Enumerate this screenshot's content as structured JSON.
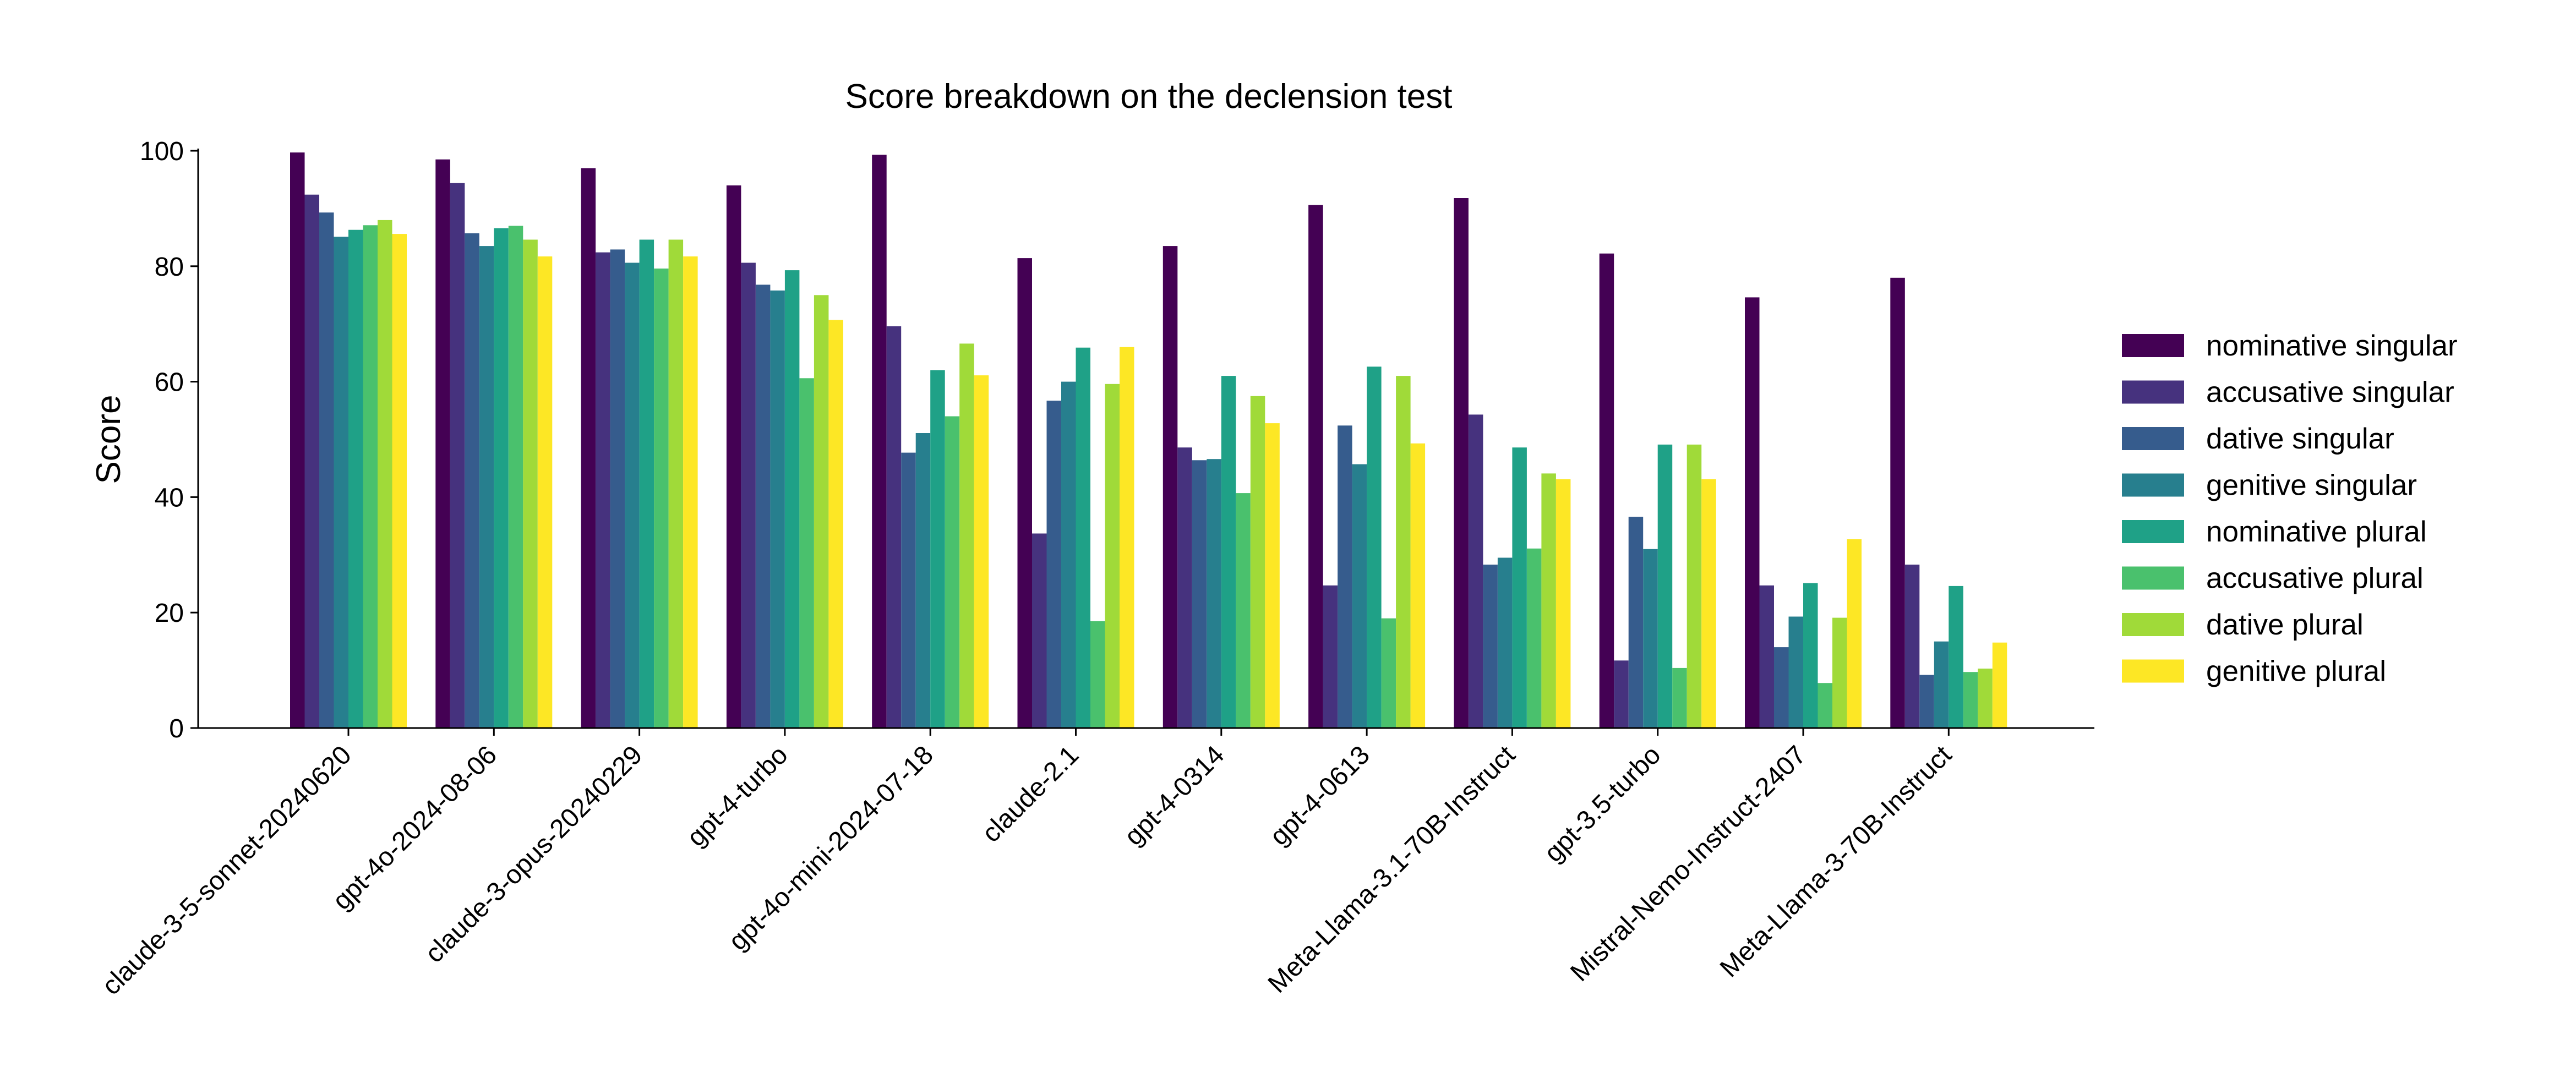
{
  "chart_data": {
    "type": "bar",
    "title": "Score breakdown on the declension test",
    "xlabel": "",
    "ylabel": "Score",
    "ylim": [
      0,
      104
    ],
    "yticks": [
      0,
      20,
      40,
      60,
      80,
      100
    ],
    "grid": false,
    "legend_position": "right",
    "categories": [
      "claude-3-5-sonnet-20240620",
      "gpt-4o-2024-08-06",
      "claude-3-opus-20240229",
      "gpt-4-turbo",
      "gpt-4o-mini-2024-07-18",
      "claude-2.1",
      "gpt-4-0314",
      "gpt-4-0613",
      "Meta-Llama-3.1-70B-Instruct",
      "gpt-3.5-turbo",
      "Mistral-Nemo-Instruct-2407",
      "Meta-Llama-3-70B-Instruct"
    ],
    "series": [
      {
        "name": "nominative singular",
        "color": "#440154",
        "values": [
          99.7,
          98.5,
          97.0,
          94.0,
          99.3,
          81.4,
          83.5,
          90.6,
          91.8,
          82.2,
          74.6,
          78.0
        ]
      },
      {
        "name": "accusative singular",
        "color": "#46327e",
        "values": [
          92.4,
          94.4,
          82.4,
          80.6,
          69.6,
          33.7,
          48.6,
          24.7,
          54.3,
          11.7,
          24.7,
          28.3
        ]
      },
      {
        "name": "dative singular",
        "color": "#365c8d",
        "values": [
          89.3,
          85.7,
          82.9,
          76.8,
          47.7,
          56.7,
          46.4,
          52.4,
          28.3,
          36.6,
          14.0,
          9.2
        ]
      },
      {
        "name": "genitive singular",
        "color": "#277f8e",
        "values": [
          85.1,
          83.5,
          80.6,
          75.8,
          51.1,
          60.0,
          46.6,
          45.7,
          29.5,
          31.0,
          19.3,
          15.0
        ]
      },
      {
        "name": "nominative plural",
        "color": "#1fa187",
        "values": [
          86.3,
          86.6,
          84.6,
          79.3,
          62.0,
          65.9,
          61.0,
          62.6,
          48.6,
          49.1,
          25.1,
          24.6
        ]
      },
      {
        "name": "accusative plural",
        "color": "#4ac16d",
        "values": [
          87.1,
          87.0,
          79.6,
          60.6,
          54.0,
          18.5,
          40.7,
          19.0,
          31.1,
          10.4,
          7.8,
          9.7
        ]
      },
      {
        "name": "dative plural",
        "color": "#a0da39",
        "values": [
          88.0,
          84.6,
          84.6,
          75.0,
          66.6,
          59.6,
          57.5,
          61.0,
          44.1,
          49.1,
          19.1,
          10.3
        ]
      },
      {
        "name": "genitive plural",
        "color": "#fde725",
        "values": [
          85.6,
          81.7,
          81.7,
          70.7,
          61.1,
          66.0,
          52.8,
          49.3,
          43.1,
          43.1,
          32.7,
          14.8
        ]
      }
    ]
  }
}
